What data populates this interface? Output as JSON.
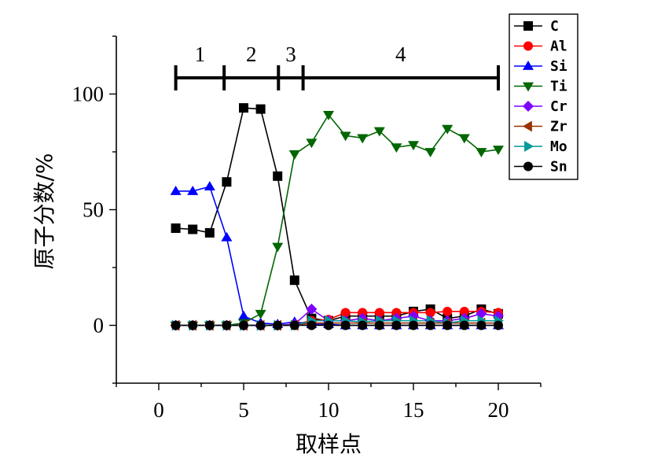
{
  "chart_data": {
    "type": "line",
    "title": "",
    "xlabel": "取样点",
    "ylabel": "原子分数/%",
    "xlim": [
      -2.5,
      22.5
    ],
    "ylim": [
      -25,
      125
    ],
    "xticks": [
      0,
      5,
      10,
      15,
      20
    ],
    "yticks": [
      0,
      50,
      100
    ],
    "xtick_labels": [
      "0",
      "5",
      "10",
      "15",
      "20"
    ],
    "ytick_labels": [
      "0",
      "50",
      "100"
    ],
    "grid": false,
    "legend_position": "top-right",
    "x": [
      1,
      2,
      3,
      4,
      5,
      6,
      7,
      8,
      9,
      10,
      11,
      12,
      13,
      14,
      15,
      16,
      17,
      18,
      19,
      20
    ],
    "series": [
      {
        "name": "C",
        "color": "#000000",
        "marker": "square",
        "values": [
          42,
          41.5,
          40,
          62,
          94,
          93.5,
          64.5,
          19.5,
          3,
          2,
          4,
          4,
          4,
          4,
          6,
          7,
          3,
          4,
          7,
          5
        ]
      },
      {
        "name": "Al",
        "color": "#ff0000",
        "marker": "circle",
        "values": [
          0,
          0,
          0,
          0,
          0,
          0,
          0,
          0.5,
          2,
          2.5,
          5.5,
          5.5,
          5.5,
          5.5,
          5.5,
          5.5,
          6,
          6,
          6,
          5.5
        ]
      },
      {
        "name": "Si",
        "color": "#0000ff",
        "marker": "triangle-up",
        "values": [
          58,
          58,
          60,
          38,
          4,
          1,
          0.5,
          1.5,
          0.5,
          0.5,
          0,
          0,
          0,
          0,
          0,
          0,
          0,
          0,
          0,
          0
        ]
      },
      {
        "name": "Ti",
        "color": "#006600",
        "marker": "triangle-down",
        "values": [
          0,
          0,
          0,
          0,
          1,
          5,
          34,
          74,
          79,
          91,
          82,
          81,
          84,
          77,
          78,
          75,
          85,
          81,
          75,
          76
        ]
      },
      {
        "name": "Cr",
        "color": "#7f00ff",
        "marker": "diamond",
        "values": [
          0,
          0,
          0,
          0,
          0,
          0,
          0,
          0.5,
          7,
          2,
          2,
          3,
          2,
          3,
          4,
          2,
          2,
          3,
          5,
          4
        ]
      },
      {
        "name": "Zr",
        "color": "#993300",
        "marker": "triangle-left",
        "values": [
          0,
          0,
          0,
          0,
          0,
          0,
          0,
          0,
          1,
          1,
          1,
          1,
          1,
          1,
          1,
          1,
          1,
          1,
          1,
          1
        ]
      },
      {
        "name": "Mo",
        "color": "#009999",
        "marker": "triangle-right",
        "values": [
          0,
          0,
          0,
          0,
          0,
          0,
          0,
          0,
          2,
          2,
          2,
          1.5,
          2,
          2,
          2,
          2,
          1,
          2,
          2,
          2
        ]
      },
      {
        "name": "Sn",
        "color": "#000000",
        "marker": "circle",
        "values": [
          0,
          0,
          0,
          0,
          0,
          0,
          0,
          0,
          0,
          0,
          0,
          0,
          0,
          0,
          0,
          0,
          0,
          0,
          0,
          0
        ]
      }
    ],
    "region_bar": {
      "y": 107,
      "boundaries": [
        1,
        3.85,
        7.05,
        8.5,
        20
      ],
      "labels": [
        "1",
        "2",
        "3",
        "4"
      ]
    }
  }
}
